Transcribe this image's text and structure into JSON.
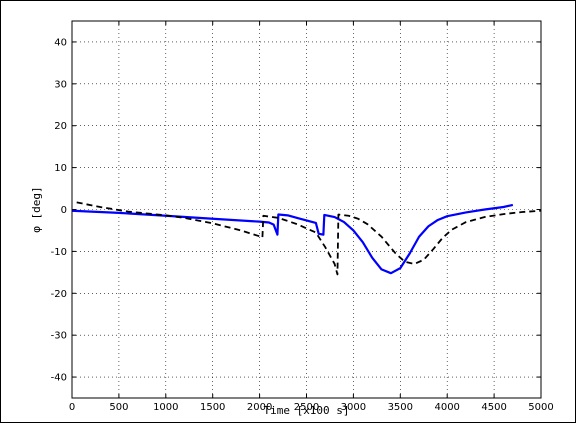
{
  "chart_data": {
    "type": "line",
    "title": "",
    "xlabel": "Time [x100 s]",
    "ylabel": "φ [deg]",
    "xlim": [
      0,
      5000
    ],
    "ylim": [
      -45,
      45
    ],
    "xticks": [
      0,
      500,
      1000,
      1500,
      2000,
      2500,
      3000,
      3500,
      4000,
      4500,
      5000
    ],
    "yticks": [
      -40,
      -30,
      -20,
      -10,
      0,
      10,
      20,
      30,
      40
    ],
    "grid": true,
    "legend": "none",
    "series": [
      {
        "color": "#0000ff",
        "style": "solid",
        "points": [
          [
            0,
            -0.3
          ],
          [
            500,
            -0.8
          ],
          [
            1000,
            -1.5
          ],
          [
            1500,
            -2.2
          ],
          [
            2000,
            -2.9
          ],
          [
            2100,
            -3.1
          ],
          [
            2150,
            -3.6
          ],
          [
            2190,
            -6.0
          ],
          [
            2200,
            -1.2
          ],
          [
            2300,
            -1.4
          ],
          [
            2400,
            -2.0
          ],
          [
            2500,
            -2.6
          ],
          [
            2600,
            -3.2
          ],
          [
            2630,
            -5.8
          ],
          [
            2680,
            -6.0
          ],
          [
            2690,
            -1.3
          ],
          [
            2800,
            -1.8
          ],
          [
            2900,
            -3.0
          ],
          [
            3000,
            -5.0
          ],
          [
            3100,
            -7.8
          ],
          [
            3200,
            -11.5
          ],
          [
            3300,
            -14.3
          ],
          [
            3400,
            -15.2
          ],
          [
            3500,
            -14.0
          ],
          [
            3600,
            -10.5
          ],
          [
            3700,
            -6.5
          ],
          [
            3800,
            -4.0
          ],
          [
            3900,
            -2.5
          ],
          [
            4000,
            -1.6
          ],
          [
            4200,
            -0.7
          ],
          [
            4400,
            0.0
          ],
          [
            4600,
            0.6
          ],
          [
            4700,
            1.1
          ]
        ]
      },
      {
        "color": "#000000",
        "style": "dashed",
        "points": [
          [
            50,
            1.7
          ],
          [
            300,
            0.6
          ],
          [
            600,
            -0.5
          ],
          [
            1000,
            -1.4
          ],
          [
            1200,
            -2.0
          ],
          [
            1500,
            -3.3
          ],
          [
            1800,
            -5.0
          ],
          [
            2000,
            -6.4
          ],
          [
            2030,
            -6.7
          ],
          [
            2040,
            -1.5
          ],
          [
            2200,
            -2.0
          ],
          [
            2400,
            -3.5
          ],
          [
            2600,
            -5.5
          ],
          [
            2700,
            -9.0
          ],
          [
            2800,
            -13.0
          ],
          [
            2830,
            -15.5
          ],
          [
            2840,
            -1.2
          ],
          [
            2950,
            -1.5
          ],
          [
            3050,
            -2.2
          ],
          [
            3150,
            -3.5
          ],
          [
            3300,
            -6.5
          ],
          [
            3450,
            -10.5
          ],
          [
            3550,
            -12.5
          ],
          [
            3650,
            -13.0
          ],
          [
            3750,
            -12.0
          ],
          [
            3850,
            -9.5
          ],
          [
            3950,
            -6.8
          ],
          [
            4050,
            -4.8
          ],
          [
            4200,
            -3.0
          ],
          [
            4400,
            -1.8
          ],
          [
            4600,
            -1.1
          ],
          [
            4800,
            -0.6
          ],
          [
            5000,
            -0.3
          ]
        ]
      }
    ]
  }
}
